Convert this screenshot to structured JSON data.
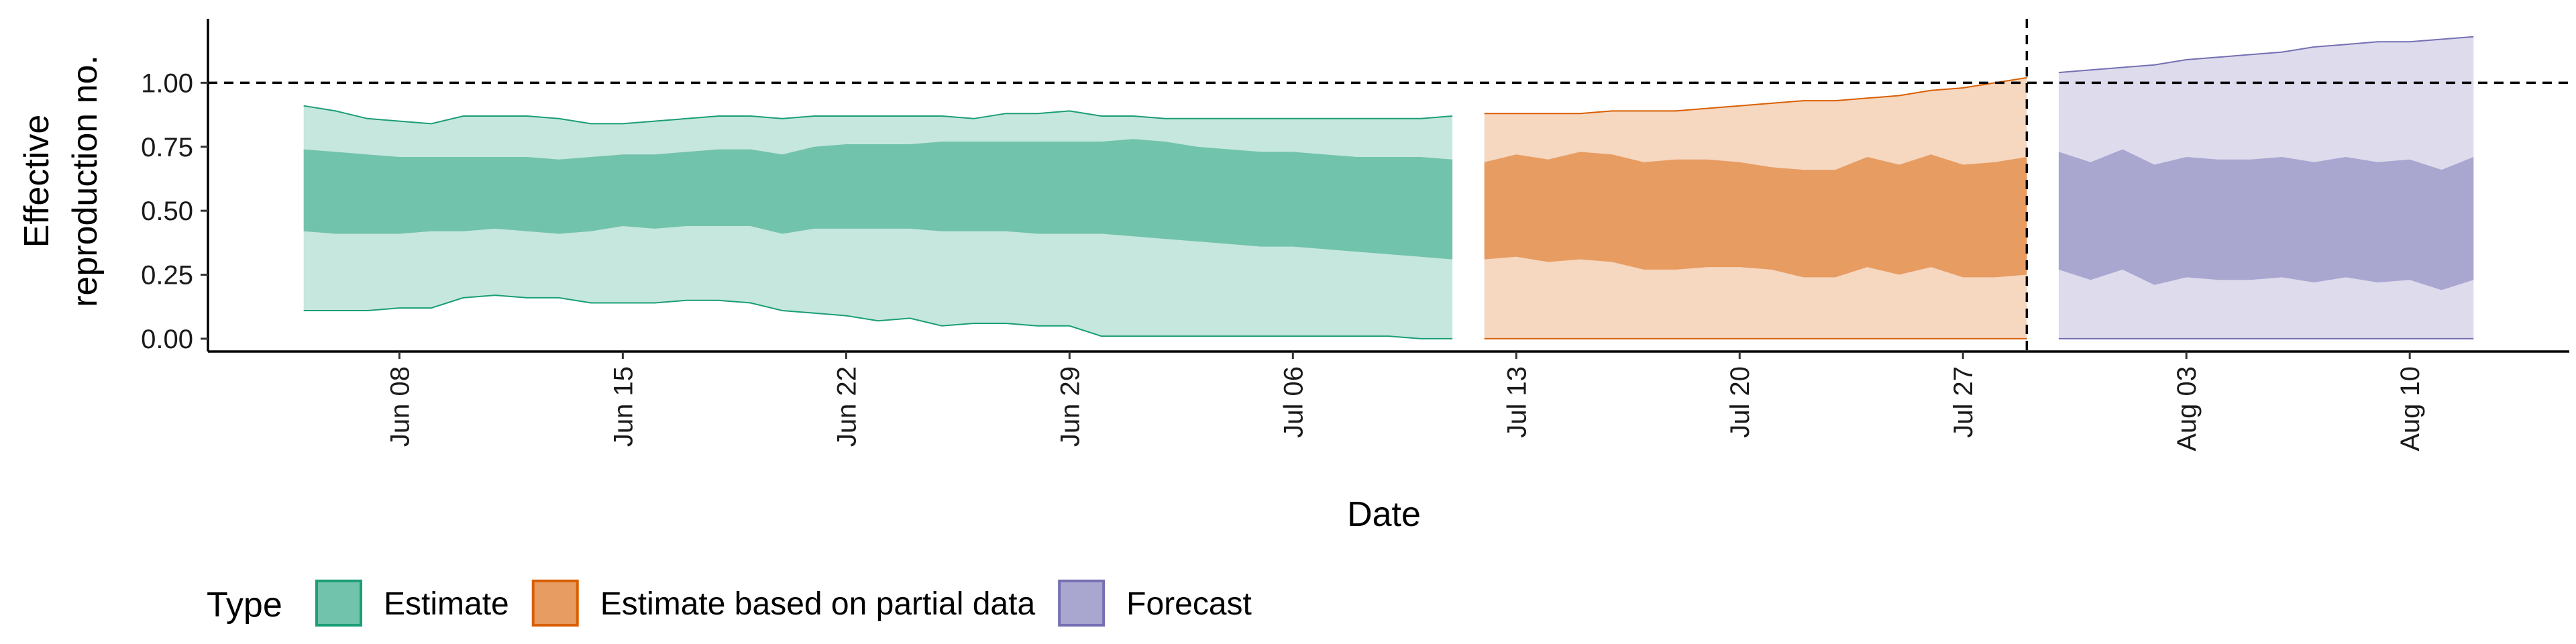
{
  "chart_data": {
    "type": "area",
    "xlabel": "Date",
    "ylabel_lines": [
      "Effective",
      "reproduction no."
    ],
    "x_domain": [
      "2020-06-02",
      "2020-08-15"
    ],
    "ylim": [
      -0.05,
      1.25
    ],
    "yticks": [
      {
        "value": 0.0,
        "label": "0.00"
      },
      {
        "value": 0.25,
        "label": "0.25"
      },
      {
        "value": 0.5,
        "label": "0.50"
      },
      {
        "value": 0.75,
        "label": "0.75"
      },
      {
        "value": 1.0,
        "label": "1.00"
      }
    ],
    "xticks": [
      {
        "date": "2020-06-08",
        "label": "Jun 08"
      },
      {
        "date": "2020-06-15",
        "label": "Jun 15"
      },
      {
        "date": "2020-06-22",
        "label": "Jun 22"
      },
      {
        "date": "2020-06-29",
        "label": "Jun 29"
      },
      {
        "date": "2020-07-06",
        "label": "Jul 06"
      },
      {
        "date": "2020-07-13",
        "label": "Jul 13"
      },
      {
        "date": "2020-07-20",
        "label": "Jul 20"
      },
      {
        "date": "2020-07-27",
        "label": "Jul 27"
      },
      {
        "date": "2020-08-03",
        "label": "Aug 03"
      },
      {
        "date": "2020-08-10",
        "label": "Aug 10"
      }
    ],
    "reference_line": {
      "y": 1.0,
      "style": "dashed"
    },
    "vertical_reference_date": "2020-07-29",
    "legend": {
      "title": "Type",
      "placement": "bottom-left"
    },
    "series": [
      {
        "name": "Estimate",
        "fill_color": "#1B9E77",
        "dates": [
          "2020-06-05",
          "2020-06-06",
          "2020-06-07",
          "2020-06-08",
          "2020-06-09",
          "2020-06-10",
          "2020-06-11",
          "2020-06-12",
          "2020-06-13",
          "2020-06-14",
          "2020-06-15",
          "2020-06-16",
          "2020-06-17",
          "2020-06-18",
          "2020-06-19",
          "2020-06-20",
          "2020-06-21",
          "2020-06-22",
          "2020-06-23",
          "2020-06-24",
          "2020-06-25",
          "2020-06-26",
          "2020-06-27",
          "2020-06-28",
          "2020-06-29",
          "2020-06-30",
          "2020-07-01",
          "2020-07-02",
          "2020-07-03",
          "2020-07-04",
          "2020-07-05",
          "2020-07-06",
          "2020-07-07",
          "2020-07-08",
          "2020-07-09",
          "2020-07-10",
          "2020-07-11"
        ],
        "upper_90": [
          0.91,
          0.89,
          0.86,
          0.85,
          0.84,
          0.87,
          0.87,
          0.87,
          0.86,
          0.84,
          0.84,
          0.85,
          0.86,
          0.87,
          0.87,
          0.86,
          0.87,
          0.87,
          0.87,
          0.87,
          0.87,
          0.86,
          0.88,
          0.88,
          0.89,
          0.87,
          0.87,
          0.86,
          0.86,
          0.86,
          0.86,
          0.86,
          0.86,
          0.86,
          0.86,
          0.86,
          0.87
        ],
        "upper_50": [
          0.74,
          0.73,
          0.72,
          0.71,
          0.71,
          0.71,
          0.71,
          0.71,
          0.7,
          0.71,
          0.72,
          0.72,
          0.73,
          0.74,
          0.74,
          0.72,
          0.75,
          0.76,
          0.76,
          0.76,
          0.77,
          0.77,
          0.77,
          0.77,
          0.77,
          0.77,
          0.78,
          0.77,
          0.75,
          0.74,
          0.73,
          0.73,
          0.72,
          0.71,
          0.71,
          0.71,
          0.7
        ],
        "lower_50": [
          0.42,
          0.41,
          0.41,
          0.41,
          0.42,
          0.42,
          0.43,
          0.42,
          0.41,
          0.42,
          0.44,
          0.43,
          0.44,
          0.44,
          0.44,
          0.41,
          0.43,
          0.43,
          0.43,
          0.43,
          0.42,
          0.42,
          0.42,
          0.41,
          0.41,
          0.41,
          0.4,
          0.39,
          0.38,
          0.37,
          0.36,
          0.36,
          0.35,
          0.34,
          0.33,
          0.32,
          0.31
        ],
        "lower_90": [
          0.11,
          0.11,
          0.11,
          0.12,
          0.12,
          0.16,
          0.17,
          0.16,
          0.16,
          0.14,
          0.14,
          0.14,
          0.15,
          0.15,
          0.14,
          0.11,
          0.1,
          0.09,
          0.07,
          0.08,
          0.05,
          0.06,
          0.06,
          0.05,
          0.05,
          0.01,
          0.01,
          0.01,
          0.01,
          0.01,
          0.01,
          0.01,
          0.01,
          0.01,
          0.01,
          0.0,
          0.0
        ]
      },
      {
        "name": "Estimate based on partial data",
        "fill_color": "#D95F02",
        "dates": [
          "2020-07-12",
          "2020-07-13",
          "2020-07-14",
          "2020-07-15",
          "2020-07-16",
          "2020-07-17",
          "2020-07-18",
          "2020-07-19",
          "2020-07-20",
          "2020-07-21",
          "2020-07-22",
          "2020-07-23",
          "2020-07-24",
          "2020-07-25",
          "2020-07-26",
          "2020-07-27",
          "2020-07-28",
          "2020-07-29"
        ],
        "upper_90": [
          0.88,
          0.88,
          0.88,
          0.88,
          0.89,
          0.89,
          0.89,
          0.9,
          0.91,
          0.92,
          0.93,
          0.93,
          0.94,
          0.95,
          0.97,
          0.98,
          1.0,
          1.02
        ],
        "upper_50": [
          0.69,
          0.72,
          0.7,
          0.73,
          0.72,
          0.69,
          0.7,
          0.7,
          0.69,
          0.67,
          0.66,
          0.66,
          0.71,
          0.68,
          0.72,
          0.68,
          0.69,
          0.71
        ],
        "lower_50": [
          0.31,
          0.32,
          0.3,
          0.31,
          0.3,
          0.27,
          0.27,
          0.28,
          0.28,
          0.27,
          0.24,
          0.24,
          0.28,
          0.25,
          0.28,
          0.24,
          0.24,
          0.25
        ],
        "lower_90": [
          0.0,
          0.0,
          0.0,
          0.0,
          0.0,
          0.0,
          0.0,
          0.0,
          0.0,
          0.0,
          0.0,
          0.0,
          0.0,
          0.0,
          0.0,
          0.0,
          0.0,
          0.0
        ]
      },
      {
        "name": "Forecast",
        "fill_color": "#7570B3",
        "dates": [
          "2020-07-30",
          "2020-07-31",
          "2020-08-01",
          "2020-08-02",
          "2020-08-03",
          "2020-08-04",
          "2020-08-05",
          "2020-08-06",
          "2020-08-07",
          "2020-08-08",
          "2020-08-09",
          "2020-08-10",
          "2020-08-11",
          "2020-08-12"
        ],
        "upper_90": [
          1.04,
          1.05,
          1.06,
          1.07,
          1.09,
          1.1,
          1.11,
          1.12,
          1.14,
          1.15,
          1.16,
          1.16,
          1.17,
          1.18
        ],
        "upper_50": [
          0.73,
          0.69,
          0.74,
          0.68,
          0.71,
          0.7,
          0.7,
          0.71,
          0.69,
          0.71,
          0.69,
          0.7,
          0.66,
          0.71
        ],
        "lower_50": [
          0.27,
          0.23,
          0.27,
          0.21,
          0.24,
          0.23,
          0.23,
          0.24,
          0.22,
          0.24,
          0.22,
          0.23,
          0.19,
          0.23
        ],
        "lower_90": [
          0.0,
          0.0,
          0.0,
          0.0,
          0.0,
          0.0,
          0.0,
          0.0,
          0.0,
          0.0,
          0.0,
          0.0,
          0.0,
          0.0
        ]
      }
    ]
  }
}
